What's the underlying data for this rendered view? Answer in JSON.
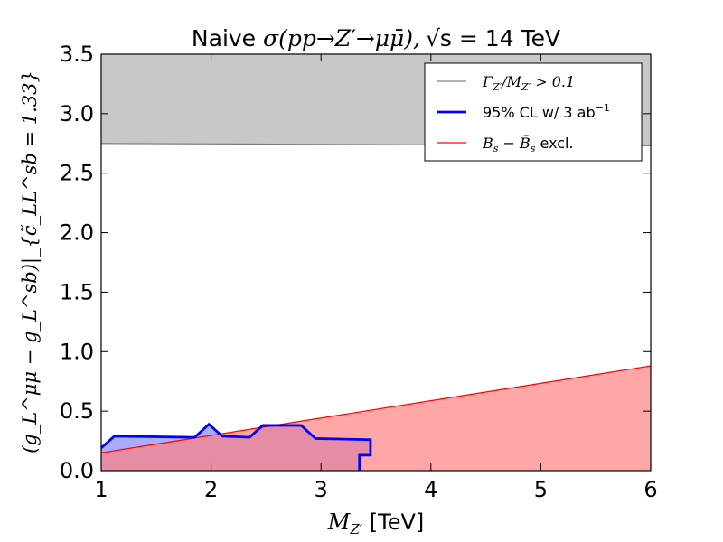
{
  "chart_data": {
    "type": "area",
    "title_prefix": "Naive ",
    "title_math": "σ(pp→Z′→μμ̄),",
    "title_sqrt_s": "√s",
    "title_suffix": " = 14 TeV",
    "xlabel_math": "M",
    "xlabel_sub": "Z′",
    "xlabel_unit": " [TeV]",
    "ylabel": "(g_L^μμ − g_L^sb)|_{c̃_LL^sb = 1.33}",
    "xlim": [
      1,
      6
    ],
    "ylim": [
      0,
      3.5
    ],
    "xticks": [
      "1",
      "2",
      "3",
      "4",
      "5",
      "6"
    ],
    "yticks": [
      "0.0",
      "0.5",
      "1.0",
      "1.5",
      "2.0",
      "2.5",
      "3.0",
      "3.5"
    ],
    "grid": false,
    "legend_position": "top-right",
    "colors": {
      "width_region_fill": "#c8c8c8",
      "width_line": "#808080",
      "cl_line": "#0000ff",
      "cl_fill": "#8080ff",
      "bs_fill": "#ff8080",
      "bs_line": "#ff0000"
    },
    "series": [
      {
        "name": "Γ_Z′/M_Z′ > 0.1",
        "kind": "upper-excluded-band",
        "x": [
          1,
          6
        ],
        "y": [
          2.75,
          2.73
        ]
      },
      {
        "name": "95% CL w/ 3 ab⁻¹",
        "kind": "closed-contour",
        "x": [
          1.0,
          1.12,
          1.85,
          1.98,
          2.1,
          2.35,
          2.47,
          2.82,
          2.95,
          3.45,
          3.45,
          3.35,
          3.35,
          1.0
        ],
        "y": [
          0.19,
          0.29,
          0.28,
          0.39,
          0.29,
          0.28,
          0.38,
          0.38,
          0.27,
          0.26,
          0.13,
          0.13,
          0.0,
          0.0
        ]
      },
      {
        "name": "B_s − B̄_s excl.",
        "kind": "lower-excluded-region",
        "x": [
          1,
          6
        ],
        "y": [
          0.15,
          0.88
        ]
      }
    ],
    "legend": [
      {
        "label_math": "Γ",
        "label_sub": "Z′",
        "label_rest": "/M",
        "label_sub2": "Z′",
        "label_tail": " > 0.1"
      },
      {
        "label_main": "95% CL w/ 3 ab",
        "label_sup": "−1"
      },
      {
        "label_math": "B",
        "label_sub": "s",
        "label_rest": " − B̄",
        "label_sub2": "s",
        "label_tail": " excl."
      }
    ]
  }
}
